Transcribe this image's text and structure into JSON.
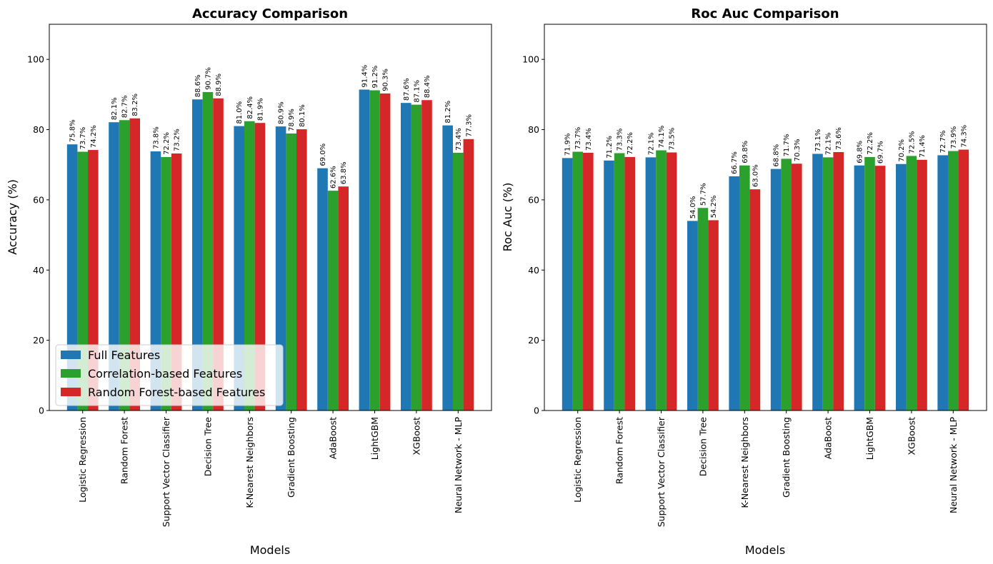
{
  "colors": {
    "full": "#1f77b4",
    "correlation": "#2ca02c",
    "random_forest": "#d62728"
  },
  "legend": {
    "items": [
      "Full Features",
      "Correlation-based Features",
      "Random Forest-based Features"
    ],
    "placement": "lower-left of left chart"
  },
  "chart_data": [
    {
      "type": "bar",
      "title": "Accuracy Comparison",
      "xlabel": "Models",
      "ylabel": "Accuracy (%)",
      "ylim": [
        0,
        110
      ],
      "yticks": [
        0,
        20,
        40,
        60,
        80,
        100
      ],
      "categories": [
        "Logistic Regression",
        "Random Forest",
        "Support Vector Classifier",
        "Decision Tree",
        "K-Nearest Neighbors",
        "Gradient Boosting",
        "AdaBoost",
        "LightGBM",
        "XGBoost",
        "Neural Network - MLP"
      ],
      "series": [
        {
          "name": "Full Features",
          "values": [
            75.8,
            82.1,
            73.8,
            88.6,
            81.0,
            80.9,
            69.0,
            91.4,
            87.6,
            81.2
          ]
        },
        {
          "name": "Correlation-based Features",
          "values": [
            73.7,
            82.7,
            72.2,
            90.7,
            82.4,
            78.9,
            62.6,
            91.2,
            87.1,
            73.4
          ]
        },
        {
          "name": "Random Forest-based Features",
          "values": [
            74.2,
            83.2,
            73.2,
            88.9,
            81.9,
            80.1,
            63.8,
            90.3,
            88.4,
            77.3
          ]
        }
      ],
      "data_labels": [
        [
          "75.8%",
          "82.1%",
          "73.8%",
          "88.6%",
          "81.0%",
          "80.9%",
          "69.0%",
          "91.4%",
          "87.6%",
          "81.2%"
        ],
        [
          "73.7%",
          "82.7%",
          "72.2%",
          "90.7%",
          "82.4%",
          "78.9%",
          "62.6%",
          "91.2%",
          "87.1%",
          "73.4%"
        ],
        [
          "74.2%",
          "83.2%",
          "73.2%",
          "88.9%",
          "81.9%",
          "80.1%",
          "63.8%",
          "90.3%",
          "88.4%",
          "77.3%"
        ]
      ]
    },
    {
      "type": "bar",
      "title": "Roc Auc Comparison",
      "xlabel": "Models",
      "ylabel": "Roc Auc (%)",
      "ylim": [
        0,
        110
      ],
      "yticks": [
        0,
        20,
        40,
        60,
        80,
        100
      ],
      "categories": [
        "Logistic Regression",
        "Random Forest",
        "Support Vector Classifier",
        "Decision Tree",
        "K-Nearest Neighbors",
        "Gradient Boosting",
        "AdaBoost",
        "LightGBM",
        "XGBoost",
        "Neural Network - MLP"
      ],
      "series": [
        {
          "name": "Full Features",
          "values": [
            71.9,
            71.2,
            72.1,
            54.0,
            66.7,
            68.8,
            73.1,
            69.8,
            70.2,
            72.7
          ]
        },
        {
          "name": "Correlation-based Features",
          "values": [
            73.7,
            73.3,
            74.1,
            57.7,
            69.8,
            71.7,
            72.1,
            72.2,
            72.5,
            73.9
          ]
        },
        {
          "name": "Random Forest-based Features",
          "values": [
            73.4,
            72.2,
            73.5,
            54.2,
            63.0,
            70.3,
            73.6,
            69.7,
            71.4,
            74.3
          ]
        }
      ],
      "data_labels": [
        [
          "71.9%",
          "71.2%",
          "72.1%",
          "54.0%",
          "66.7%",
          "68.8%",
          "73.1%",
          "69.8%",
          "70.2%",
          "72.7%"
        ],
        [
          "73.7%",
          "73.3%",
          "74.1%",
          "57.7%",
          "69.8%",
          "71.7%",
          "72.1%",
          "72.2%",
          "72.5%",
          "73.9%"
        ],
        [
          "73.4%",
          "72.2%",
          "73.5%",
          "54.2%",
          "63.0%",
          "70.3%",
          "73.6%",
          "69.7%",
          "71.4%",
          "74.3%"
        ]
      ]
    }
  ]
}
